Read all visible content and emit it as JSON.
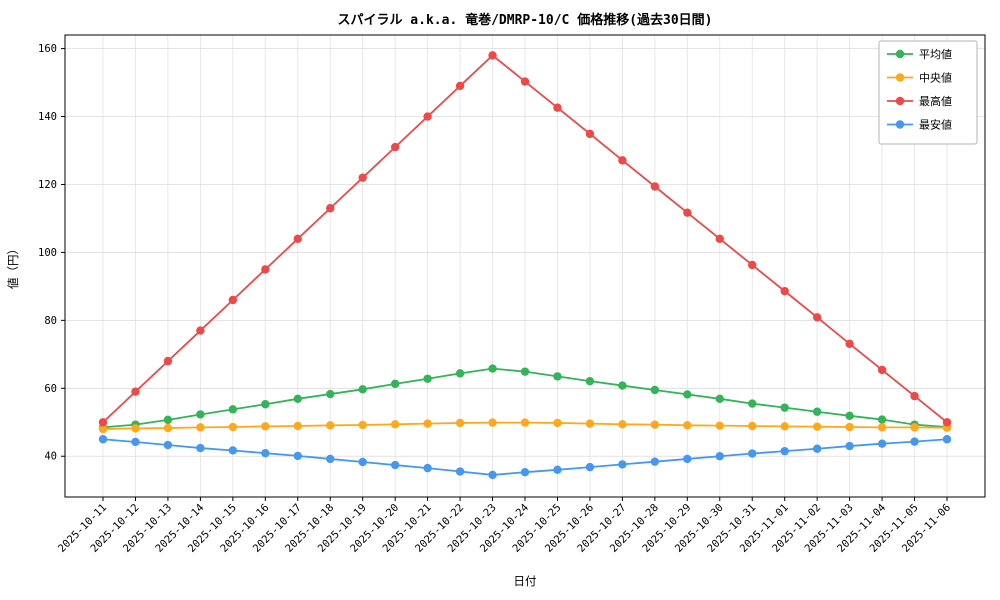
{
  "chart_data": {
    "type": "line",
    "title": "スパイラル a.k.a. 竜巻/DMRP-10/C 価格推移(過去30日間)",
    "xlabel": "日付",
    "ylabel": "値（円）",
    "ylim": [
      28,
      164
    ],
    "yticks": [
      40,
      60,
      80,
      100,
      120,
      140,
      160
    ],
    "grid": true,
    "legend_position": "upper right",
    "categories": [
      "2025-10-11",
      "2025-10-12",
      "2025-10-13",
      "2025-10-14",
      "2025-10-15",
      "2025-10-16",
      "2025-10-17",
      "2025-10-18",
      "2025-10-19",
      "2025-10-20",
      "2025-10-21",
      "2025-10-22",
      "2025-10-23",
      "2025-10-24",
      "2025-10-25",
      "2025-10-26",
      "2025-10-27",
      "2025-10-28",
      "2025-10-29",
      "2025-10-30",
      "2025-10-31",
      "2025-11-01",
      "2025-11-02",
      "2025-11-03",
      "2025-11-04",
      "2025-11-05",
      "2025-11-06"
    ],
    "series": [
      {
        "name": "平均値",
        "color": "#34b358",
        "values": [
          48.5,
          49.3,
          50.7,
          52.3,
          53.8,
          55.3,
          56.9,
          58.3,
          59.7,
          61.3,
          62.8,
          64.4,
          65.8,
          64.9,
          63.5,
          62.1,
          60.8,
          59.5,
          58.2,
          56.9,
          55.5,
          54.3,
          53.1,
          51.9,
          50.8,
          49.3,
          48.6
        ]
      },
      {
        "name": "中央値",
        "color": "#ffa81d",
        "values": [
          48.0,
          48.2,
          48.3,
          48.5,
          48.6,
          48.8,
          48.9,
          49.1,
          49.2,
          49.4,
          49.6,
          49.8,
          49.9,
          49.9,
          49.8,
          49.6,
          49.4,
          49.3,
          49.1,
          49.0,
          48.9,
          48.8,
          48.7,
          48.6,
          48.5,
          48.5,
          48.4
        ]
      },
      {
        "name": "最高値",
        "color": "#ef4848",
        "values": [
          50,
          59,
          68,
          77,
          86,
          95,
          104,
          113,
          122,
          131,
          140,
          149,
          158,
          150.3,
          142.6,
          134.9,
          127.1,
          119.4,
          111.7,
          104,
          96.3,
          88.6,
          80.9,
          73.1,
          65.4,
          57.7,
          50
        ]
      },
      {
        "name": "最安値",
        "color": "#4698ef",
        "values": [
          45,
          44.2,
          43.3,
          42.4,
          41.7,
          40.9,
          40.1,
          39.2,
          38.3,
          37.4,
          36.5,
          35.5,
          34.5,
          35.3,
          36.0,
          36.8,
          37.6,
          38.4,
          39.2,
          40.0,
          40.8,
          41.5,
          42.2,
          43.0,
          43.7,
          44.3,
          45.0
        ]
      }
    ]
  }
}
